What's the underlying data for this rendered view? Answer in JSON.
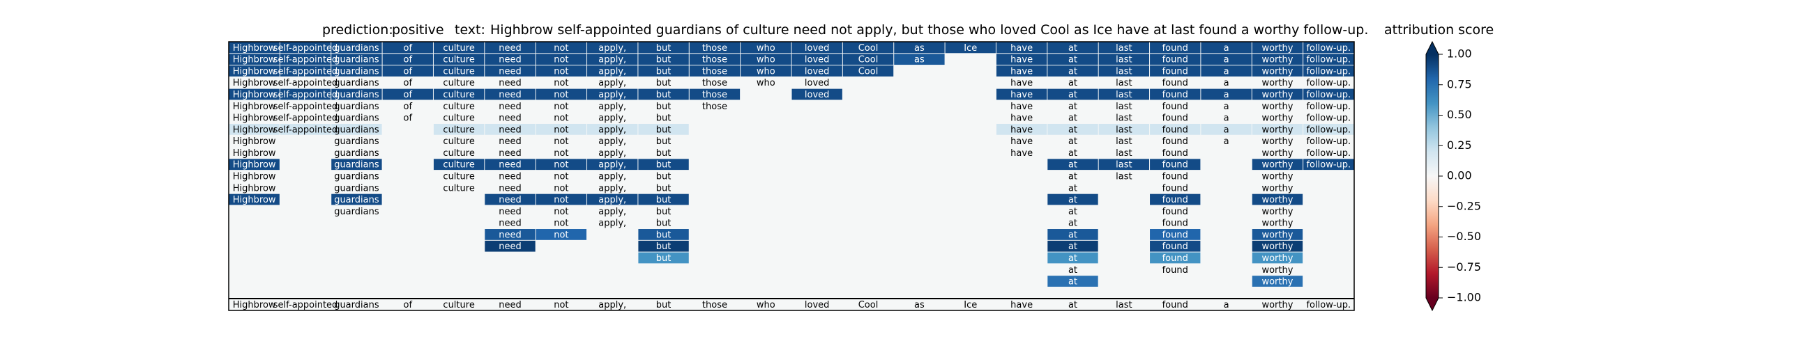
{
  "header": {
    "prediction_label": "prediction:",
    "prediction_value": "positive",
    "text_label": "text:",
    "text_value": "Highbrow self-appointed guardians of culture need not apply, but those who loved Cool as Ice have at last found a worthy follow-up."
  },
  "chart_data": {
    "type": "heatmap",
    "tokens": [
      "Highbrow",
      "self-appointed",
      "guardians",
      "of",
      "culture",
      "need",
      "not",
      "apply,",
      "but",
      "those",
      "who",
      "loved",
      "Cool",
      "as",
      "Ice",
      "have",
      "at",
      "last",
      "found",
      "a",
      "worthy",
      "follow-up."
    ],
    "colorbar": {
      "title": "attribution score",
      "range": [
        -1.0,
        1.0
      ],
      "ticks": [
        "1.00",
        "0.75",
        "0.50",
        "0.25",
        "0.00",
        "−0.25",
        "−0.50",
        "−0.75",
        "−1.00"
      ],
      "colormap": "RdBu",
      "colors": [
        "#67001f",
        "#b2182b",
        "#d6604d",
        "#f4a582",
        "#fddbc7",
        "#f7f7f7",
        "#d1e5f0",
        "#92c5de",
        "#4393c3",
        "#2166ac",
        "#053061"
      ]
    },
    "rows": [
      {
        "words": [
          0,
          1,
          2,
          3,
          4,
          5,
          6,
          7,
          8,
          9,
          10,
          11,
          12,
          13,
          14,
          15,
          16,
          17,
          18,
          19,
          20,
          21
        ],
        "scores": {
          "0": 0.9,
          "1": 0.9,
          "2": 0.9,
          "3": 0.9,
          "4": 0.9,
          "5": 0.9,
          "6": 0.9,
          "7": 0.9,
          "8": 0.9,
          "9": 0.9,
          "10": 0.9,
          "11": 0.9,
          "12": 0.9,
          "13": 0.9,
          "14": 0.9,
          "15": 0.9,
          "16": 0.9,
          "17": 0.9,
          "18": 0.9,
          "19": 0.9,
          "20": 0.9,
          "21": 0.9
        }
      },
      {
        "words": [
          0,
          1,
          2,
          3,
          4,
          5,
          6,
          7,
          8,
          9,
          10,
          11,
          12,
          13,
          15,
          16,
          17,
          18,
          19,
          20,
          21
        ],
        "scores": {
          "0": 0.9,
          "1": 0.9,
          "2": 0.9,
          "3": 0.9,
          "4": 0.9,
          "5": 0.9,
          "6": 0.9,
          "7": 0.9,
          "8": 0.9,
          "9": 0.9,
          "10": 0.9,
          "11": 0.9,
          "12": 0.9,
          "13": 0.85,
          "15": 0.9,
          "16": 0.9,
          "17": 0.9,
          "18": 0.9,
          "19": 0.9,
          "20": 0.9,
          "21": 0.9
        }
      },
      {
        "words": [
          0,
          1,
          2,
          3,
          4,
          5,
          6,
          7,
          8,
          9,
          10,
          11,
          12,
          15,
          16,
          17,
          18,
          19,
          20,
          21
        ],
        "scores": {
          "0": 0.9,
          "1": 0.9,
          "2": 0.9,
          "3": 0.9,
          "4": 0.9,
          "5": 0.9,
          "6": 0.9,
          "7": 0.9,
          "8": 0.9,
          "9": 0.9,
          "10": 0.9,
          "11": 0.9,
          "12": 0.9,
          "15": 0.9,
          "16": 0.9,
          "17": 0.9,
          "18": 0.9,
          "19": 0.9,
          "20": 0.9,
          "21": 0.9
        }
      },
      {
        "words": [
          0,
          1,
          2,
          3,
          4,
          5,
          6,
          7,
          8,
          9,
          10,
          11,
          15,
          16,
          17,
          18,
          19,
          20,
          21
        ],
        "scores": {}
      },
      {
        "words": [
          0,
          1,
          2,
          3,
          4,
          5,
          6,
          7,
          8,
          9,
          11,
          15,
          16,
          17,
          18,
          19,
          20,
          21
        ],
        "scores": {
          "0": 0.9,
          "1": 0.9,
          "2": 0.9,
          "3": 0.9,
          "4": 0.9,
          "5": 0.9,
          "6": 0.9,
          "7": 0.9,
          "8": 0.9,
          "9": 0.9,
          "11": 0.9,
          "15": 0.9,
          "16": 0.9,
          "17": 0.9,
          "18": 0.9,
          "19": 0.9,
          "20": 0.9,
          "21": 0.9
        }
      },
      {
        "words": [
          0,
          1,
          2,
          3,
          4,
          5,
          6,
          7,
          8,
          9,
          15,
          16,
          17,
          18,
          19,
          20,
          21
        ],
        "scores": {}
      },
      {
        "words": [
          0,
          1,
          2,
          3,
          4,
          5,
          6,
          7,
          8,
          15,
          16,
          17,
          18,
          19,
          20,
          21
        ],
        "scores": {}
      },
      {
        "words": [
          0,
          1,
          2,
          4,
          5,
          6,
          7,
          8,
          15,
          16,
          17,
          18,
          19,
          20,
          21
        ],
        "scores": {
          "0": 0.2,
          "1": 0.2,
          "2": 0.2,
          "4": 0.2,
          "5": 0.2,
          "6": 0.2,
          "7": 0.2,
          "8": 0.2,
          "15": 0.2,
          "16": 0.2,
          "17": 0.2,
          "18": 0.2,
          "19": 0.2,
          "20": 0.2,
          "21": 0.2
        }
      },
      {
        "words": [
          0,
          2,
          4,
          5,
          6,
          7,
          8,
          15,
          16,
          17,
          18,
          19,
          20,
          21
        ],
        "scores": {}
      },
      {
        "words": [
          0,
          2,
          4,
          5,
          6,
          7,
          8,
          15,
          16,
          17,
          18,
          20,
          21
        ],
        "scores": {}
      },
      {
        "words": [
          0,
          2,
          4,
          5,
          6,
          7,
          8,
          16,
          17,
          18,
          20,
          21
        ],
        "scores": {
          "0": 0.9,
          "2": 0.9,
          "4": 0.9,
          "5": 0.9,
          "6": 0.9,
          "7": 0.9,
          "8": 0.9,
          "16": 0.9,
          "17": 0.9,
          "18": 0.9,
          "20": 0.9,
          "21": 0.9
        }
      },
      {
        "words": [
          0,
          2,
          4,
          5,
          6,
          7,
          8,
          16,
          17,
          18,
          20
        ],
        "scores": {}
      },
      {
        "words": [
          0,
          2,
          4,
          5,
          6,
          7,
          8,
          16,
          18,
          20
        ],
        "scores": {}
      },
      {
        "words": [
          0,
          2,
          5,
          6,
          7,
          8,
          16,
          18,
          20
        ],
        "scores": {
          "0": 0.9,
          "2": 0.9,
          "5": 0.9,
          "6": 0.9,
          "7": 0.9,
          "8": 0.9,
          "16": 0.9,
          "18": 0.9,
          "20": 0.9
        }
      },
      {
        "words": [
          2,
          5,
          6,
          7,
          8,
          16,
          18,
          20
        ],
        "scores": {}
      },
      {
        "words": [
          5,
          6,
          7,
          8,
          16,
          18,
          20
        ],
        "scores": {}
      },
      {
        "words": [
          5,
          6,
          8,
          16,
          18,
          20
        ],
        "scores": {
          "5": 0.85,
          "6": 0.8,
          "8": 0.85,
          "16": 0.85,
          "18": 0.8,
          "20": 0.85
        }
      },
      {
        "words": [
          5,
          8,
          16,
          18,
          20
        ],
        "scores": {
          "5": 0.95,
          "8": 0.95,
          "16": 0.95,
          "18": 0.9,
          "20": 0.95
        }
      },
      {
        "words": [
          8,
          16,
          18,
          20
        ],
        "scores": {
          "8": 0.6,
          "16": 0.6,
          "18": 0.6,
          "20": 0.6
        }
      },
      {
        "words": [
          16,
          18,
          20
        ],
        "scores": {}
      },
      {
        "words": [
          16,
          20
        ],
        "scores": {
          "16": 0.75,
          "20": 0.75
        }
      },
      {
        "words": [],
        "scores": {}
      },
      {
        "words": [
          0,
          1,
          2,
          3,
          4,
          5,
          6,
          7,
          8,
          9,
          10,
          11,
          12,
          13,
          14,
          15,
          16,
          17,
          18,
          19,
          20,
          21
        ],
        "scores": {}
      }
    ]
  }
}
